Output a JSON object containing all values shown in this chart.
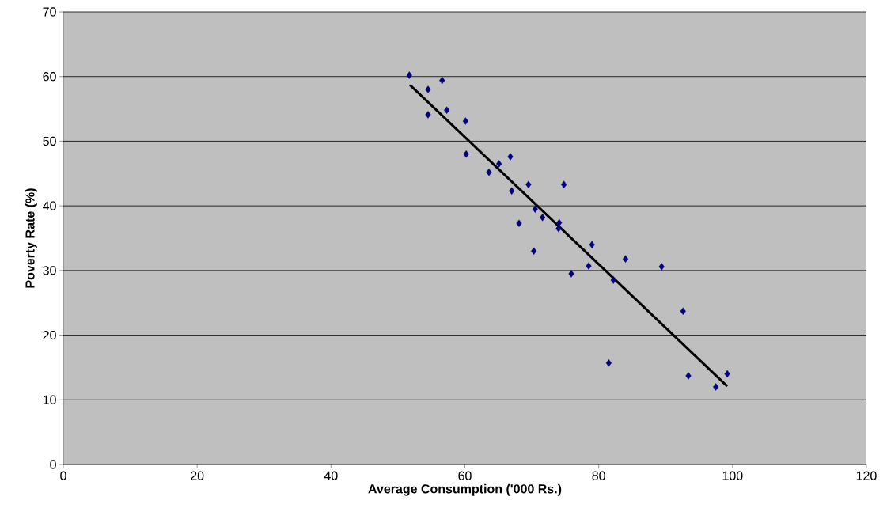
{
  "chart_data": {
    "type": "scatter",
    "xlabel": "Average Consumption ('000 Rs.)",
    "ylabel": "Poverty Rate (%)",
    "xlim": [
      0,
      120
    ],
    "xticks": [
      0,
      20,
      40,
      60,
      80,
      100,
      120
    ],
    "ylim": [
      0,
      70
    ],
    "yticks": [
      0,
      10,
      20,
      30,
      40,
      50,
      60,
      70
    ],
    "grid": "y",
    "marker": "diamond",
    "series": [
      {
        "color": "#000080",
        "x": [
          51.7,
          54.5,
          54.5,
          56.6,
          57.3,
          60.1,
          60.2,
          63.6,
          65.1,
          66.8,
          67.0,
          68.1,
          69.5,
          70.5,
          71.6,
          70.3,
          74.0,
          74.1,
          74.8,
          75.9,
          78.5,
          79.0,
          82.2,
          84.0,
          89.4,
          81.5,
          92.6,
          93.4,
          97.5,
          99.2
        ],
        "values": [
          60.2,
          58.0,
          54.1,
          59.4,
          54.8,
          53.1,
          48.0,
          45.2,
          46.5,
          47.6,
          42.3,
          37.3,
          43.3,
          39.5,
          38.2,
          33.0,
          36.5,
          37.4,
          43.3,
          29.5,
          30.7,
          34.0,
          28.5,
          31.8,
          30.6,
          15.7,
          23.7,
          13.7,
          12.0,
          14.0
        ]
      },
      {
        "type": "line",
        "color": "#000000",
        "marker": "none",
        "line_style": "solid",
        "x": [
          51.8,
          99.2
        ],
        "values": [
          58.7,
          12.1
        ]
      }
    ]
  }
}
